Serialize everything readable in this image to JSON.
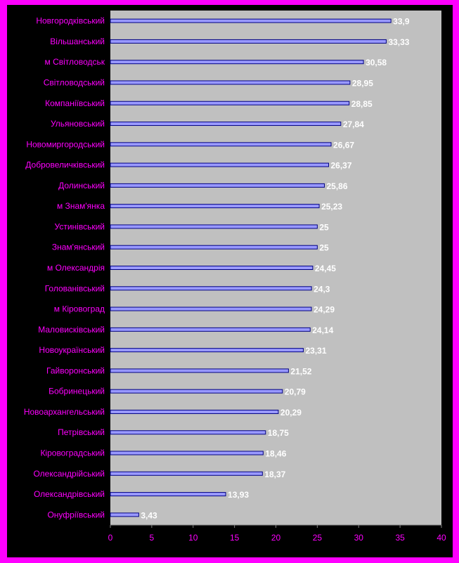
{
  "colors": {
    "frame": "#ff00ff",
    "background": "#000000",
    "plot_area": "#c0c0c0",
    "bar_fill": "#9999ff",
    "bar_stroke": "#000080",
    "category_label": "#ff00ff",
    "value_label": "#ffffff",
    "tick_label": "#ff00ff"
  },
  "chart_data": {
    "type": "bar",
    "orientation": "horizontal",
    "categories": [
      "Новгородківський",
      "Вільшанський",
      "м Світловодськ",
      "Світловодський",
      "Компаніївський",
      "Ульяновський",
      "Новомиргородський",
      "Добровеличківський",
      "Долинський",
      "м Знам'янка",
      "Устинівський",
      "Знам'янський",
      "м Олександрія",
      "Голованівський",
      "м Кіровоград",
      "Маловисківський",
      "Новоукраїнський",
      "Гайворонський",
      "Бобринецький",
      "Новоархангельський",
      "Петрівський",
      "Кіровоградський",
      "Олександрійський",
      "Олександрівський",
      "Онуфріївський"
    ],
    "values": [
      33.9,
      33.33,
      30.58,
      28.95,
      28.85,
      27.84,
      26.67,
      26.37,
      25.86,
      25.23,
      25,
      25,
      24.45,
      24.3,
      24.29,
      24.14,
      23.31,
      21.52,
      20.79,
      20.29,
      18.75,
      18.46,
      18.37,
      13.93,
      3.43
    ],
    "value_labels": [
      "33,9",
      "33,33",
      "30,58",
      "28,95",
      "28,85",
      "27,84",
      "26,67",
      "26,37",
      "25,86",
      "25,23",
      "25",
      "25",
      "24,45",
      "24,3",
      "24,29",
      "24,14",
      "23,31",
      "21,52",
      "20,79",
      "20,29",
      "18,75",
      "18,46",
      "18,37",
      "13,93",
      "3,43"
    ],
    "x_ticks": [
      "0",
      "5",
      "10",
      "15",
      "20",
      "25",
      "30",
      "35",
      "40"
    ],
    "xlim": [
      0,
      40
    ],
    "grid": false,
    "legend": "none"
  }
}
